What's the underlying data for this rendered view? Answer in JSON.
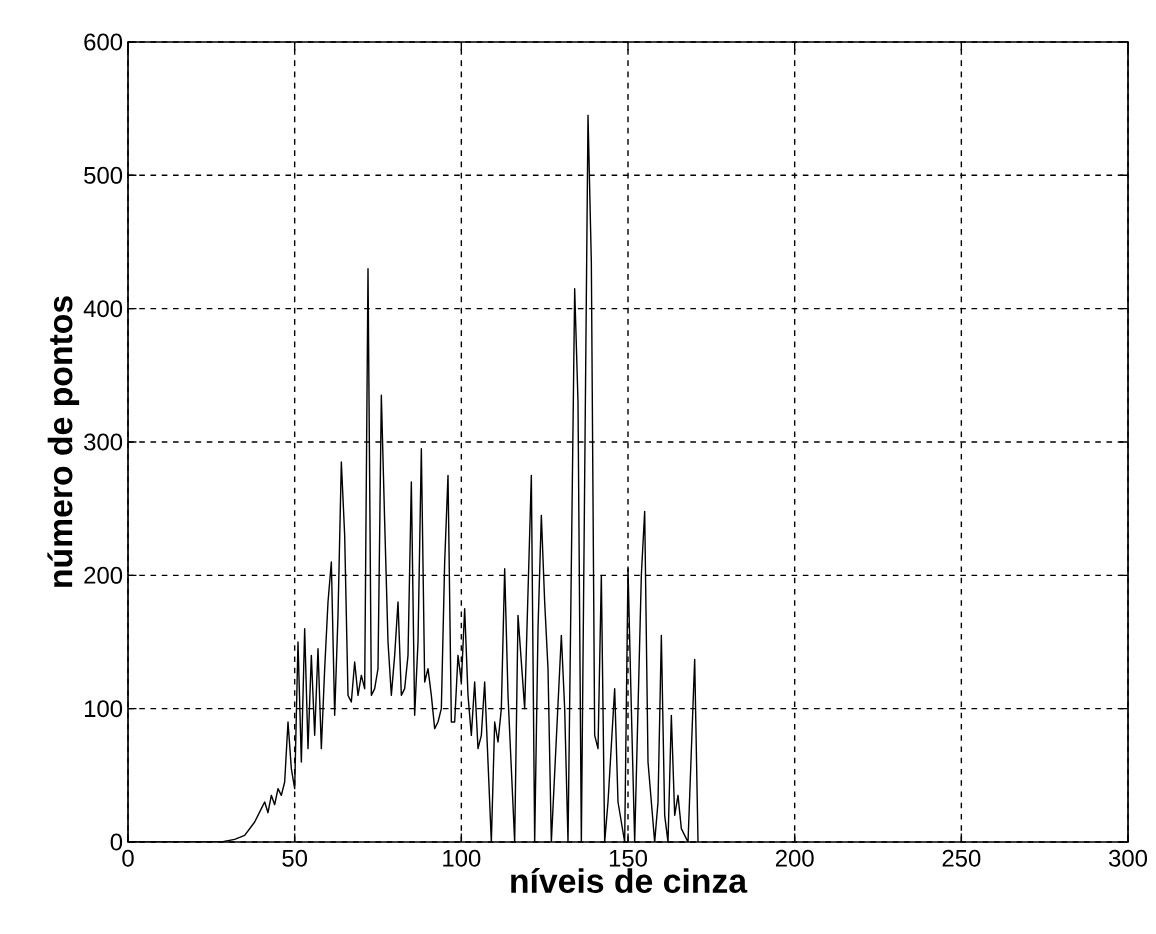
{
  "chart_data": {
    "type": "line",
    "xlabel": "níveis de cinza",
    "ylabel": "número de pontos",
    "x": [
      0,
      28,
      32,
      35,
      38,
      40,
      41,
      42,
      43,
      44,
      45,
      46,
      47,
      48,
      49,
      50,
      51,
      52,
      53,
      54,
      55,
      56,
      57,
      58,
      59,
      60,
      61,
      62,
      63,
      64,
      65,
      66,
      67,
      68,
      69,
      70,
      71,
      72,
      73,
      74,
      75,
      76,
      77,
      78,
      79,
      80,
      81,
      82,
      83,
      84,
      85,
      86,
      87,
      88,
      89,
      90,
      91,
      92,
      93,
      94,
      95,
      96,
      97,
      98,
      99,
      100,
      101,
      102,
      103,
      104,
      105,
      106,
      107,
      109,
      110,
      111,
      112,
      113,
      114,
      116,
      117,
      119,
      121,
      122,
      123,
      124,
      125,
      126,
      127,
      130,
      131,
      132,
      134,
      135,
      136,
      138,
      139,
      140,
      141,
      142,
      143,
      144,
      146,
      147,
      149,
      150,
      151,
      152,
      154,
      155,
      156,
      158,
      159,
      160,
      161,
      162,
      163,
      164,
      165,
      166,
      167,
      168,
      170,
      171
    ],
    "series": [
      {
        "color": "#000000",
        "values": [
          0,
          0,
          2,
          5,
          15,
          25,
          30,
          22,
          35,
          28,
          40,
          35,
          45,
          90,
          55,
          40,
          150,
          60,
          160,
          70,
          140,
          80,
          145,
          70,
          130,
          180,
          210,
          95,
          170,
          285,
          230,
          110,
          105,
          135,
          110,
          125,
          115,
          430,
          110,
          115,
          130,
          335,
          240,
          150,
          110,
          140,
          180,
          110,
          115,
          140,
          270,
          95,
          150,
          295,
          120,
          130,
          110,
          85,
          90,
          100,
          210,
          275,
          90,
          90,
          140,
          120,
          175,
          110,
          80,
          120,
          70,
          80,
          120,
          0,
          90,
          75,
          100,
          205,
          110,
          0,
          170,
          100,
          275,
          0,
          160,
          245,
          180,
          130,
          0,
          155,
          100,
          0,
          415,
          330,
          0,
          545,
          435,
          80,
          70,
          200,
          0,
          30,
          115,
          30,
          0,
          205,
          100,
          0,
          200,
          248,
          60,
          0,
          30,
          155,
          20,
          0,
          95,
          20,
          35,
          10,
          5,
          0,
          137,
          0
        ]
      }
    ],
    "xlim": [
      0,
      300
    ],
    "ylim": [
      0,
      600
    ],
    "xticks": [
      0,
      50,
      100,
      150,
      200,
      250,
      300
    ],
    "yticks": [
      0,
      100,
      200,
      300,
      400,
      500,
      600
    ],
    "grid": true,
    "line_style": "solid"
  }
}
